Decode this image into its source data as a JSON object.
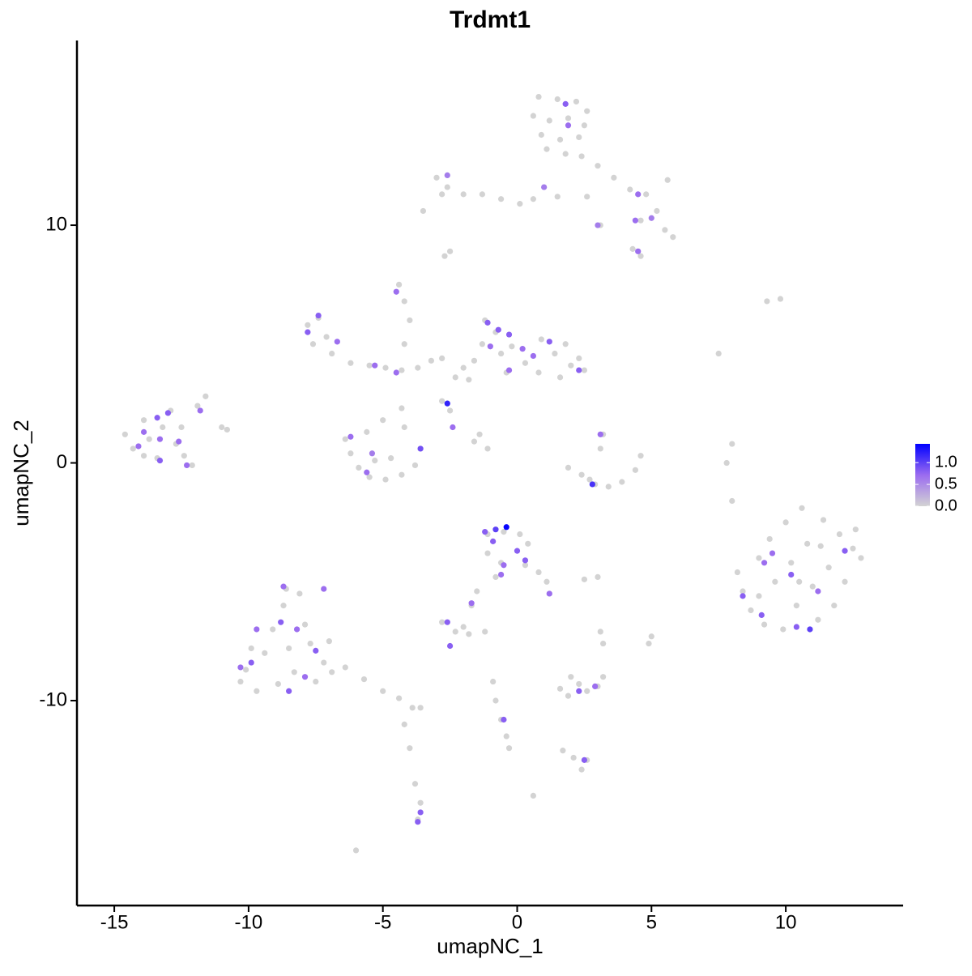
{
  "chart_data": {
    "type": "scatter",
    "title": "Trdmt1",
    "x_label": "umapNC_1",
    "y_label": "umapNC_2",
    "xlim": [
      -16.39,
      14.37
    ],
    "ylim": [
      -18.62,
      17.77
    ],
    "xticks": [
      -15,
      -10,
      -5,
      0,
      5,
      10
    ],
    "yticks": [
      -10,
      0,
      10
    ],
    "colorbar": {
      "lim": [
        0,
        1.43
      ],
      "colors": [
        "#d3d3d3",
        "#9b6cf0",
        "#0000ff"
      ],
      "ticks": [
        {
          "value": 0,
          "label": "0.0"
        },
        {
          "value": 0.5,
          "label": "0.5"
        },
        {
          "value": 1,
          "label": "1.0"
        }
      ]
    },
    "x": [
      0.8,
      1.5,
      2.2,
      2.6,
      0.6,
      1.2,
      1.9,
      2.5,
      0.9,
      1.6,
      2.3,
      1.1,
      1.8,
      2.4,
      3.0,
      3.6,
      4.2,
      4.8,
      5.6,
      5.2,
      4.6,
      5.5,
      5.8,
      4.3,
      4.6,
      3.1,
      2.6,
      1.5,
      -3.0,
      -2.6,
      -2.0,
      -1.3,
      -0.6,
      0.1,
      0.6,
      -2.8,
      -2.7,
      -2.5,
      -4.4,
      -4.2,
      -4.0,
      -4.2,
      -7.8,
      -7.4,
      -7.1,
      -7.6,
      -6.9,
      -6.2,
      -5.5,
      -4.9,
      -4.3,
      -3.7,
      -3.2,
      -2.8,
      -2.3,
      -1.2,
      -0.8,
      -1.3,
      -0.6,
      -1.6,
      -0.2,
      0.3,
      0.8,
      1.4,
      1.8,
      2.3,
      2.5,
      1.6,
      0.9,
      -2.0,
      -1.8,
      -0.4,
      2.0,
      -2.8,
      -2.5,
      -4.3,
      -1.6,
      -1.1,
      -1.4,
      -5.0,
      -6.4,
      -6.2,
      -5.9,
      -5.5,
      -4.9,
      -4.3,
      -3.8,
      -3.6,
      -5.3,
      -4.7,
      -5.6,
      -4.2,
      -14.6,
      -14.3,
      -13.9,
      -13.7,
      -13.4,
      -13.2,
      -12.9,
      -12.7,
      -12.4,
      -12.1,
      -13.9,
      -12.5,
      -11.6,
      -11.9,
      -10.8,
      1.9,
      2.4,
      2.9,
      3.4,
      3.9,
      4.4,
      4.6,
      3.1,
      3.2,
      2.7,
      7.5,
      8.0,
      7.8,
      8.0,
      9.3,
      9.8,
      8.2,
      8.4,
      8.7,
      9.0,
      9.2,
      9.4,
      9.6,
      9.9,
      10.0,
      10.2,
      10.4,
      10.6,
      10.8,
      11.0,
      11.2,
      11.4,
      11.6,
      11.8,
      12.0,
      12.2,
      12.5,
      12.8,
      12.6,
      9.0,
      10.5,
      11.3,
      -1.1,
      -0.5,
      0.1,
      0.4,
      -1.1,
      -0.6,
      0.3,
      0.8,
      1.1,
      1.2,
      -0.8,
      -1.5,
      -1.7,
      2.5,
      3.0,
      -2.8,
      -2.3,
      -2.0,
      -1.8,
      -1.2,
      3.1,
      3.2,
      5.0,
      4.9,
      1.6,
      1.9,
      2.3,
      2.6,
      3.0,
      3.2,
      2.0,
      1.7,
      2.1,
      2.4,
      2.6,
      -0.9,
      -0.8,
      -0.6,
      -0.4,
      -0.3,
      0.6,
      -10.1,
      -9.7,
      -9.4,
      -9.1,
      -8.9,
      -8.7,
      -8.5,
      -8.3,
      -8.1,
      -7.9,
      -7.7,
      -7.5,
      -7.2,
      -7.0,
      -6.9,
      -10.3,
      -9.9,
      -8.6,
      -6.4,
      -5.7,
      -5.0,
      -4.4,
      -3.9,
      -4.2,
      -4.0,
      -3.8,
      -3.6,
      -3.7,
      -6.0,
      -3.6,
      -11.0,
      -3.5,
      1.8,
      1.9,
      1.0,
      4.5,
      3.0,
      4.4,
      5.0,
      4.5,
      -2.6,
      -4.5,
      -7.4,
      -7.8,
      -6.7,
      -5.3,
      -4.5,
      -1.1,
      -0.7,
      -0.3,
      -1.0,
      0.2,
      1.2,
      0.6,
      -0.3,
      2.3,
      -2.6,
      -2.4,
      -3.6,
      -6.2,
      -5.6,
      -5.4,
      3.1,
      2.8,
      -13.4,
      -13.0,
      -13.9,
      -14.1,
      -13.3,
      -12.6,
      -12.3,
      -13.3,
      -11.8,
      9.2,
      8.4,
      9.1,
      10.2,
      10.4,
      10.9,
      11.2,
      12.2,
      9.5,
      -0.4,
      -0.8,
      -1.2,
      -0.9,
      0.0,
      0.3,
      -0.5,
      -0.6,
      1.2,
      -1.7,
      -2.6,
      -2.5,
      2.3,
      2.9,
      -0.5,
      2.5,
      -3.6,
      -3.7,
      -9.7,
      -8.8,
      -8.2,
      -9.9,
      -10.3,
      -7.5,
      -8.5,
      -7.9,
      -8.7,
      -7.2
    ],
    "y": [
      15.4,
      15.3,
      15.2,
      14.8,
      14.6,
      14.4,
      14.5,
      14.2,
      13.8,
      13.6,
      13.7,
      13.2,
      13.0,
      12.9,
      12.5,
      12.0,
      11.5,
      11.3,
      11.9,
      10.6,
      10.2,
      9.8,
      9.5,
      9.0,
      8.7,
      10.0,
      11.2,
      11.2,
      12.0,
      11.6,
      11.3,
      11.3,
      11.1,
      10.9,
      11.1,
      11.3,
      8.7,
      8.9,
      7.5,
      6.8,
      6.0,
      5.0,
      5.8,
      6.1,
      5.3,
      5.0,
      4.6,
      4.2,
      4.1,
      4.0,
      3.9,
      4.0,
      4.3,
      4.4,
      3.6,
      6.0,
      5.5,
      5.0,
      4.6,
      4.3,
      4.9,
      4.2,
      3.8,
      4.6,
      5.0,
      4.4,
      3.9,
      3.6,
      5.2,
      4.0,
      3.5,
      3.8,
      4.1,
      2.6,
      2.2,
      2.3,
      0.9,
      0.6,
      1.2,
      1.8,
      1.0,
      0.4,
      -0.2,
      -0.6,
      -0.7,
      -0.5,
      -0.1,
      0.6,
      0.1,
      0.2,
      1.3,
      1.5,
      1.2,
      0.6,
      1.8,
      1.0,
      0.2,
      1.5,
      2.2,
      0.8,
      0.3,
      -0.1,
      0.3,
      1.5,
      2.8,
      2.4,
      1.4,
      -0.2,
      -0.5,
      -0.9,
      -1.0,
      -0.8,
      -0.3,
      0.3,
      0.6,
      1.2,
      -0.7,
      4.6,
      0.8,
      0.0,
      -1.6,
      6.8,
      6.9,
      -4.6,
      -5.4,
      -6.2,
      -4.0,
      -6.8,
      -3.2,
      -5.0,
      -7.0,
      -2.5,
      -4.2,
      -6.0,
      -1.9,
      -3.4,
      -5.2,
      -6.6,
      -2.4,
      -4.4,
      -6.0,
      -3.0,
      -5.0,
      -3.6,
      -4.0,
      -2.8,
      -5.6,
      -5.0,
      -3.5,
      -3.0,
      -2.9,
      -3.0,
      -3.4,
      -3.8,
      -4.2,
      -4.3,
      -4.6,
      -5.0,
      -5.5,
      -4.8,
      -5.4,
      -6.0,
      -4.9,
      -4.8,
      -6.7,
      -7.1,
      -6.9,
      -7.2,
      -7.1,
      -7.1,
      -7.6,
      -7.3,
      -7.6,
      -9.5,
      -9.8,
      -9.3,
      -9.6,
      -9.4,
      -9.0,
      -9.0,
      -12.1,
      -12.4,
      -12.9,
      -12.5,
      -9.2,
      -10.0,
      -10.8,
      -11.5,
      -12.0,
      -14.0,
      -8.7,
      -9.6,
      -8.0,
      -7.0,
      -9.3,
      -6.0,
      -7.8,
      -8.8,
      -5.5,
      -6.8,
      -7.6,
      -9.2,
      -8.4,
      -7.5,
      -8.8,
      -9.2,
      -7.8,
      -5.3,
      -8.6,
      -9.1,
      -9.6,
      -9.9,
      -10.3,
      -11.0,
      -12.0,
      -13.5,
      -14.3,
      -15.0,
      -16.3,
      -10.3,
      1.5,
      10.6,
      15.1,
      14.2,
      11.6,
      11.3,
      10.0,
      10.2,
      10.3,
      8.9,
      12.1,
      7.2,
      6.2,
      5.5,
      5.1,
      4.1,
      3.8,
      5.9,
      5.6,
      5.4,
      4.9,
      4.8,
      5.1,
      4.5,
      3.9,
      3.9,
      2.5,
      1.5,
      0.6,
      1.1,
      -0.4,
      0.4,
      1.2,
      -0.9,
      1.9,
      2.1,
      1.3,
      0.7,
      1.0,
      0.9,
      -0.1,
      0.1,
      2.2,
      -4.2,
      -5.6,
      -6.4,
      -4.7,
      -6.9,
      -7.0,
      -5.4,
      -3.7,
      -3.8,
      -2.7,
      -2.8,
      -2.9,
      -3.3,
      -3.7,
      -4.1,
      -4.3,
      -4.7,
      -5.5,
      -5.9,
      -6.7,
      -7.7,
      -9.6,
      -9.4,
      -10.8,
      -12.5,
      -14.7,
      -15.1,
      -7.0,
      -6.7,
      -7.0,
      -8.4,
      -8.6,
      -7.9,
      -9.6,
      -9.0,
      -5.2,
      -5.3
    ],
    "values": [
      0,
      0,
      0,
      0,
      0,
      0,
      0,
      0,
      0,
      0,
      0,
      0,
      0,
      0,
      0,
      0,
      0,
      0,
      0,
      0,
      0,
      0,
      0,
      0,
      0,
      0,
      0,
      0,
      0,
      0,
      0,
      0,
      0,
      0,
      0,
      0,
      0,
      0,
      0,
      0,
      0,
      0,
      0,
      0,
      0,
      0,
      0,
      0,
      0,
      0,
      0,
      0,
      0,
      0,
      0,
      0,
      0,
      0,
      0,
      0,
      0,
      0,
      0,
      0,
      0,
      0,
      0,
      0,
      0,
      0,
      0,
      0,
      0,
      0,
      0,
      0,
      0,
      0,
      0,
      0,
      0,
      0,
      0,
      0,
      0,
      0,
      0,
      0,
      0,
      0,
      0,
      0,
      0,
      0,
      0,
      0,
      0,
      0,
      0,
      0,
      0,
      0,
      0,
      0,
      0,
      0,
      0,
      0,
      0,
      0,
      0,
      0,
      0,
      0,
      0,
      0,
      0,
      0,
      0,
      0,
      0,
      0,
      0,
      0,
      0,
      0,
      0,
      0,
      0,
      0,
      0,
      0,
      0,
      0,
      0,
      0,
      0,
      0,
      0,
      0,
      0,
      0,
      0,
      0,
      0,
      0,
      0,
      0,
      0,
      0,
      0,
      0,
      0,
      0,
      0,
      0,
      0,
      0,
      0,
      0,
      0,
      0,
      0,
      0,
      0,
      0,
      0,
      0,
      0,
      0,
      0,
      0,
      0,
      0,
      0,
      0,
      0,
      0,
      0,
      0,
      0,
      0,
      0,
      0,
      0,
      0,
      0,
      0,
      0,
      0,
      0,
      0,
      0,
      0,
      0,
      0,
      0,
      0,
      0,
      0,
      0,
      0,
      0,
      0,
      0,
      0,
      0,
      0,
      0,
      0,
      0,
      0,
      0,
      0,
      0,
      0,
      0,
      0,
      0,
      0,
      0,
      0,
      0.8,
      0.7,
      0.6,
      0.7,
      0.6,
      0.7,
      0.6,
      0.7,
      0.6,
      0.7,
      0.8,
      0.8,
      0.7,
      0.7,
      0.7,
      0.8,
      0.8,
      0.8,
      0.7,
      0.7,
      0.8,
      0.7,
      0.7,
      0.8,
      1.2,
      0.7,
      0.9,
      0.7,
      0.7,
      0.6,
      0.7,
      1.1,
      0.8,
      0.8,
      0.7,
      0.7,
      0.7,
      0.7,
      0.7,
      0.8,
      0.7,
      0.7,
      0.8,
      0.8,
      0.8,
      0.8,
      1.0,
      0.7,
      0.8,
      0.7,
      1.4,
      1.0,
      0.8,
      0.8,
      0.8,
      0.8,
      0.7,
      0.7,
      0.7,
      0.7,
      0.8,
      0.8,
      0.8,
      0.7,
      0.8,
      0.8,
      0.8,
      0.8,
      0.7,
      0.8,
      0.7,
      0.8,
      0.7,
      0.8,
      0.8,
      0.7,
      0.7,
      0.7
    ]
  }
}
